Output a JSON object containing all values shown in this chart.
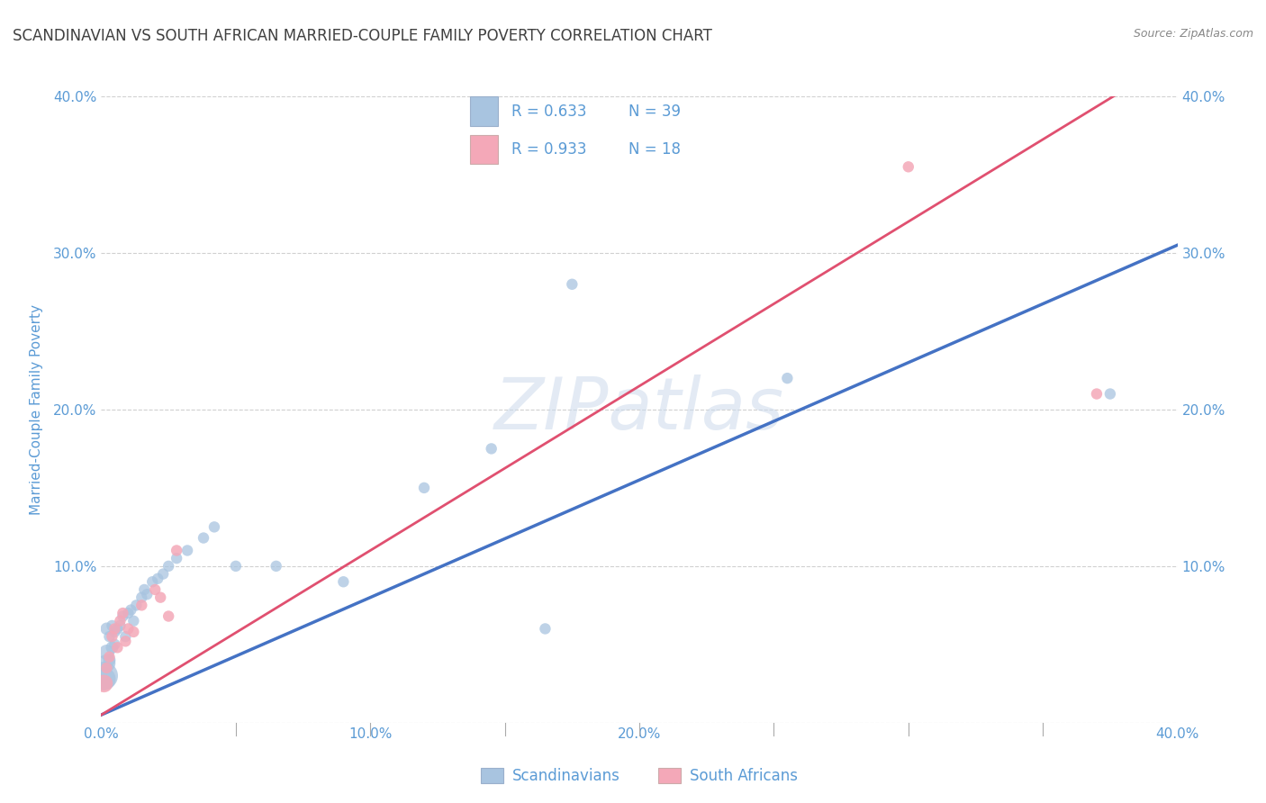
{
  "title": "SCANDINAVIAN VS SOUTH AFRICAN MARRIED-COUPLE FAMILY POVERTY CORRELATION CHART",
  "source": "Source: ZipAtlas.com",
  "ylabel": "Married-Couple Family Poverty",
  "xlim": [
    0.0,
    0.4
  ],
  "ylim": [
    0.0,
    0.4
  ],
  "watermark": "ZIPatlas",
  "legend_r1": "0.633",
  "legend_n1": "39",
  "legend_r2": "0.933",
  "legend_n2": "18",
  "scandinavians_x": [
    0.001,
    0.001,
    0.002,
    0.002,
    0.002,
    0.003,
    0.003,
    0.004,
    0.004,
    0.005,
    0.005,
    0.006,
    0.007,
    0.008,
    0.009,
    0.01,
    0.011,
    0.012,
    0.013,
    0.015,
    0.016,
    0.017,
    0.019,
    0.021,
    0.023,
    0.025,
    0.028,
    0.032,
    0.038,
    0.042,
    0.05,
    0.065,
    0.09,
    0.12,
    0.145,
    0.165,
    0.175,
    0.255,
    0.375
  ],
  "scandinavians_y": [
    0.03,
    0.028,
    0.038,
    0.045,
    0.06,
    0.04,
    0.055,
    0.048,
    0.062,
    0.05,
    0.058,
    0.06,
    0.062,
    0.068,
    0.055,
    0.07,
    0.072,
    0.065,
    0.075,
    0.08,
    0.085,
    0.082,
    0.09,
    0.092,
    0.095,
    0.1,
    0.105,
    0.11,
    0.118,
    0.125,
    0.1,
    0.1,
    0.09,
    0.15,
    0.175,
    0.06,
    0.28,
    0.22,
    0.21
  ],
  "scandinavians_size": [
    500,
    350,
    200,
    150,
    100,
    100,
    80,
    100,
    80,
    80,
    80,
    80,
    80,
    80,
    80,
    80,
    80,
    80,
    80,
    80,
    80,
    80,
    80,
    80,
    80,
    80,
    80,
    80,
    80,
    80,
    80,
    80,
    80,
    80,
    80,
    80,
    80,
    80,
    80
  ],
  "south_africans_x": [
    0.001,
    0.002,
    0.003,
    0.004,
    0.005,
    0.006,
    0.007,
    0.008,
    0.009,
    0.01,
    0.012,
    0.015,
    0.02,
    0.022,
    0.025,
    0.028,
    0.3,
    0.37
  ],
  "south_africans_y": [
    0.025,
    0.035,
    0.042,
    0.055,
    0.06,
    0.048,
    0.065,
    0.07,
    0.052,
    0.06,
    0.058,
    0.075,
    0.085,
    0.08,
    0.068,
    0.11,
    0.355,
    0.21
  ],
  "south_africans_size": [
    200,
    80,
    80,
    80,
    80,
    80,
    80,
    80,
    80,
    80,
    80,
    80,
    80,
    80,
    80,
    80,
    80,
    80
  ],
  "blue_color": "#A8C4E0",
  "pink_color": "#F4A8B8",
  "blue_line_color": "#4472C4",
  "pink_line_color": "#E05070",
  "title_color": "#404040",
  "axis_label_color": "#5B9BD5",
  "tick_color": "#5B9BD5",
  "grid_color": "#D0D0D0",
  "legend_label1": "Scandinavians",
  "legend_label2": "South Africans",
  "background_color": "#FFFFFF",
  "blue_line_slope": 0.75,
  "blue_line_intercept": 0.005,
  "pink_line_slope": 1.05,
  "pink_line_intercept": 0.005
}
